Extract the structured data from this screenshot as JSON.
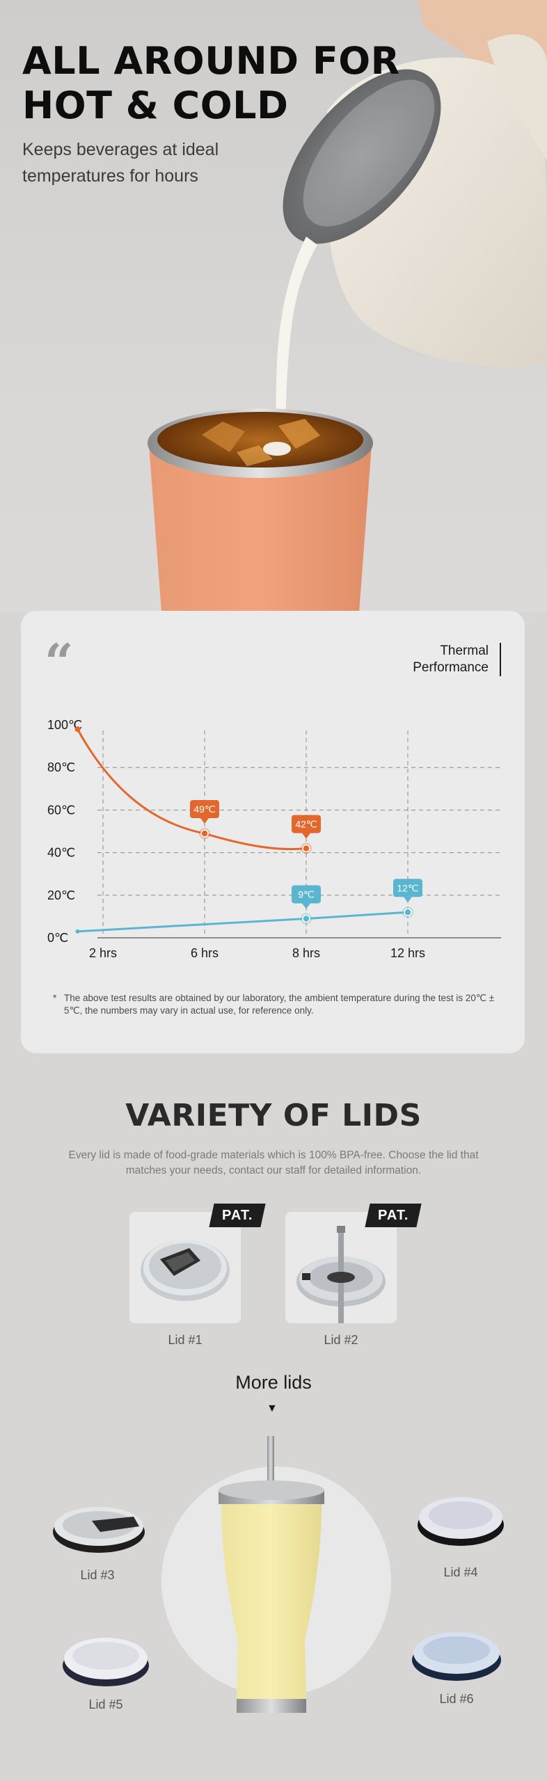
{
  "hero": {
    "title_line1": "ALL AROUND FOR",
    "title_line2": "HOT & COLD",
    "subtitle": "Keeps beverages at ideal temperatures for hours",
    "tumbler_color": "#f0a37c"
  },
  "thermal": {
    "quote_mark": "“",
    "title_line1": "Thermal",
    "title_line2": "Performance",
    "footnote_star": "*",
    "footnote": "The above test results are obtained by our laboratory, the ambient temperature during the test is 20℃ ± 5℃, the numbers may vary in actual use, for reference only."
  },
  "chart_data": {
    "type": "line",
    "categories": [
      "2 hrs",
      "6 hrs",
      "8 hrs",
      "12 hrs"
    ],
    "y_ticks": [
      "0℃",
      "20℃",
      "40℃",
      "60℃",
      "80℃",
      "100℃"
    ],
    "ylim": [
      0,
      100
    ],
    "grid": true,
    "series": [
      {
        "color": "#e2672c",
        "points": [
          {
            "x": 1.0,
            "y": 98
          },
          {
            "x": 2.0,
            "y": 49,
            "label": "49℃"
          },
          {
            "x": 3.0,
            "y": 42,
            "label": "42℃"
          }
        ]
      },
      {
        "color": "#5ab6cf",
        "points": [
          {
            "x": 1.0,
            "y": 3
          },
          {
            "x": 3.0,
            "y": 9,
            "label": "9℃"
          },
          {
            "x": 4.0,
            "y": 12,
            "label": "12℃"
          }
        ]
      }
    ]
  },
  "lids": {
    "title": "VARIETY OF LIDS",
    "description": "Every lid is made of food-grade materials which is 100% BPA-free. Choose the lid that matches your needs, contact our staff for detailed information.",
    "patent_badge": "PAT.",
    "lid1": "Lid #1",
    "lid2": "Lid #2",
    "more_lids": "More lids",
    "more_arrow": "▼",
    "lid3": "Lid #3",
    "lid4": "Lid #4",
    "lid5": "Lid #5",
    "lid6": "Lid #6",
    "tumbler_color": "#f7efb0"
  }
}
